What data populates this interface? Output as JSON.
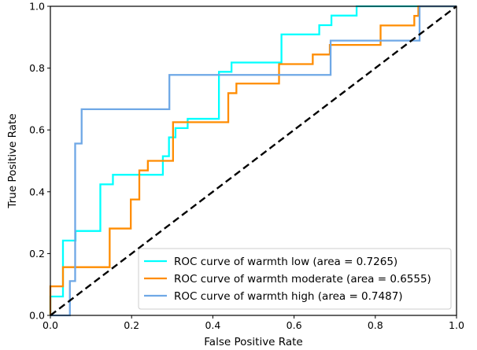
{
  "chart_data": {
    "type": "line",
    "title": "",
    "xlabel": "False Positive Rate",
    "ylabel": "True Positive Rate",
    "xlim": [
      0.0,
      1.0
    ],
    "ylim": [
      0.0,
      1.0
    ],
    "xticks": [
      "0.0",
      "0.2",
      "0.4",
      "0.6",
      "0.8",
      "1.0"
    ],
    "yticks": [
      "0.0",
      "0.2",
      "0.4",
      "0.6",
      "0.8",
      "1.0"
    ],
    "grid": false,
    "legend_position": "lower-right",
    "series": [
      {
        "name": "ROC curve of warmth low (area = 0.7265)",
        "color": "#00ffff",
        "x": [
          0.0,
          0.0,
          0.031,
          0.031,
          0.062,
          0.062,
          0.123,
          0.123,
          0.154,
          0.154,
          0.277,
          0.277,
          0.292,
          0.292,
          0.308,
          0.308,
          0.338,
          0.338,
          0.415,
          0.415,
          0.446,
          0.446,
          0.569,
          0.569,
          0.662,
          0.662,
          0.692,
          0.692,
          0.754,
          0.754,
          1.0
        ],
        "y": [
          0.0,
          0.061,
          0.061,
          0.242,
          0.242,
          0.273,
          0.273,
          0.424,
          0.424,
          0.455,
          0.455,
          0.515,
          0.515,
          0.576,
          0.576,
          0.606,
          0.606,
          0.636,
          0.636,
          0.788,
          0.788,
          0.818,
          0.818,
          0.909,
          0.909,
          0.939,
          0.939,
          0.97,
          0.97,
          1.0,
          1.0
        ]
      },
      {
        "name": "ROC curve of warmth moderate (area = 0.6555)",
        "color": "#ff8c00",
        "x": [
          0.0,
          0.0,
          0.031,
          0.031,
          0.146,
          0.146,
          0.198,
          0.198,
          0.219,
          0.219,
          0.24,
          0.24,
          0.26,
          0.26,
          0.302,
          0.302,
          0.313,
          0.313,
          0.438,
          0.438,
          0.458,
          0.458,
          0.479,
          0.479,
          0.563,
          0.563,
          0.646,
          0.646,
          0.688,
          0.688,
          0.813,
          0.813,
          0.896,
          0.896,
          0.906,
          0.906,
          1.0
        ],
        "y": [
          0.0,
          0.094,
          0.094,
          0.156,
          0.156,
          0.281,
          0.281,
          0.375,
          0.375,
          0.469,
          0.469,
          0.5,
          0.5,
          0.5,
          0.5,
          0.625,
          0.625,
          0.625,
          0.625,
          0.719,
          0.719,
          0.75,
          0.75,
          0.75,
          0.75,
          0.813,
          0.813,
          0.844,
          0.844,
          0.875,
          0.875,
          0.938,
          0.938,
          0.969,
          0.969,
          1.0,
          1.0
        ]
      },
      {
        "name": "ROC curve of warmth high (area = 0.7487)",
        "color": "#6fa8e6",
        "x": [
          0.0,
          0.048,
          0.048,
          0.061,
          0.061,
          0.077,
          0.077,
          0.293,
          0.293,
          0.69,
          0.69,
          0.909,
          0.909,
          1.0
        ],
        "y": [
          0.0,
          0.0,
          0.111,
          0.111,
          0.556,
          0.556,
          0.667,
          0.667,
          0.778,
          0.778,
          0.889,
          0.889,
          1.0,
          1.0
        ]
      }
    ],
    "reference_line": {
      "x": [
        0.0,
        1.0
      ],
      "y": [
        0.0,
        1.0
      ],
      "color": "#000000",
      "style": "dashed"
    }
  }
}
